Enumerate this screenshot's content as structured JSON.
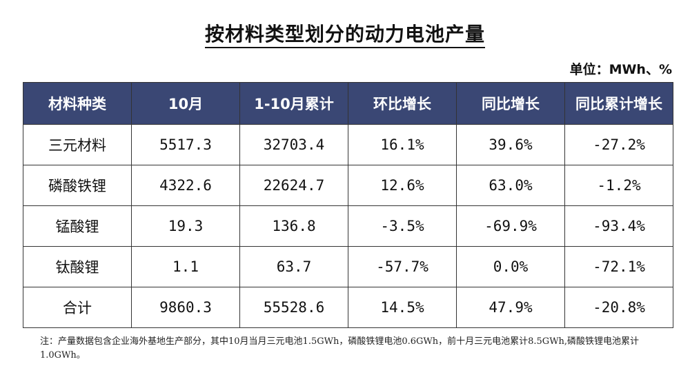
{
  "title": "按材料类型划分的动力电池产量",
  "unit": "单位：MWh、%",
  "table": {
    "headers": [
      "材料种类",
      "10月",
      "1-10月累计",
      "环比增长",
      "同比增长",
      "同比累计增长"
    ],
    "rows": [
      [
        "三元材料",
        "5517.3",
        "32703.4",
        "16.1%",
        "39.6%",
        "-27.2%"
      ],
      [
        "磷酸铁锂",
        "4322.6",
        "22624.7",
        "12.6%",
        "63.0%",
        "-1.2%"
      ],
      [
        "锰酸锂",
        "19.3",
        "136.8",
        "-3.5%",
        "-69.9%",
        "-93.4%"
      ],
      [
        "钛酸锂",
        "1.1",
        "63.7",
        "-57.7%",
        "0.0%",
        "-72.1%"
      ],
      [
        "合计",
        "9860.3",
        "55528.6",
        "14.5%",
        "47.9%",
        "-20.8%"
      ]
    ]
  },
  "note": "注：产量数据包含企业海外基地生产部分，其中10月当月三元电池1.5GWh，磷酸铁锂电池0.6GWh，前十月三元电池累计8.5GWh,磷酸铁锂电池累计1.0GWh。"
}
